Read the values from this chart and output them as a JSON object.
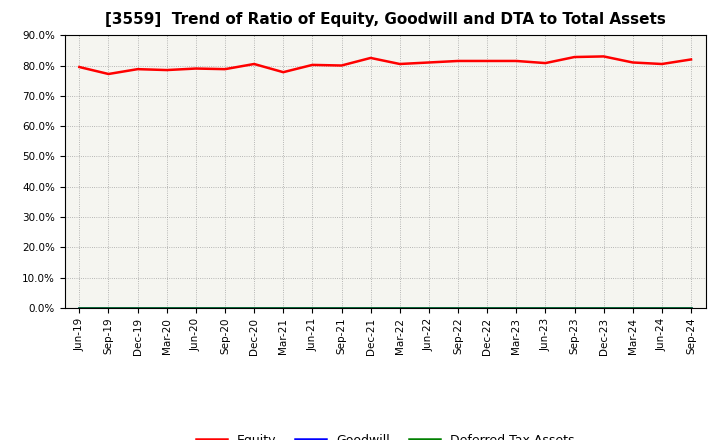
{
  "title": "[3559]  Trend of Ratio of Equity, Goodwill and DTA to Total Assets",
  "x_labels": [
    "Jun-19",
    "Sep-19",
    "Dec-19",
    "Mar-20",
    "Jun-20",
    "Sep-20",
    "Dec-20",
    "Mar-21",
    "Jun-21",
    "Sep-21",
    "Dec-21",
    "Mar-22",
    "Jun-22",
    "Sep-22",
    "Dec-22",
    "Mar-23",
    "Jun-23",
    "Sep-23",
    "Dec-23",
    "Mar-24",
    "Jun-24",
    "Sep-24"
  ],
  "equity": [
    79.5,
    77.2,
    78.8,
    78.5,
    79.0,
    78.8,
    80.5,
    77.8,
    80.2,
    80.0,
    82.5,
    80.5,
    81.0,
    81.5,
    81.5,
    81.5,
    80.8,
    82.8,
    83.0,
    81.0,
    80.5,
    82.0
  ],
  "goodwill": [
    0.0,
    0.0,
    0.0,
    0.0,
    0.0,
    0.0,
    0.0,
    0.0,
    0.0,
    0.0,
    0.0,
    0.0,
    0.0,
    0.0,
    0.0,
    0.0,
    0.0,
    0.0,
    0.0,
    0.0,
    0.0,
    0.0
  ],
  "dta": [
    0.0,
    0.0,
    0.0,
    0.0,
    0.0,
    0.0,
    0.0,
    0.0,
    0.0,
    0.0,
    0.0,
    0.0,
    0.0,
    0.0,
    0.0,
    0.0,
    0.0,
    0.0,
    0.0,
    0.0,
    0.0,
    0.0
  ],
  "equity_color": "#FF0000",
  "goodwill_color": "#0000FF",
  "dta_color": "#008000",
  "ylim": [
    0,
    90
  ],
  "yticks": [
    0,
    10,
    20,
    30,
    40,
    50,
    60,
    70,
    80,
    90
  ],
  "ytick_labels": [
    "0.0%",
    "10.0%",
    "20.0%",
    "30.0%",
    "40.0%",
    "50.0%",
    "60.0%",
    "70.0%",
    "80.0%",
    "90.0%"
  ],
  "background_color": "#FFFFFF",
  "plot_bg_color": "#F5F5F0",
  "grid_color": "#999999",
  "title_fontsize": 11,
  "tick_fontsize": 7.5,
  "legend_labels": [
    "Equity",
    "Goodwill",
    "Deferred Tax Assets"
  ]
}
